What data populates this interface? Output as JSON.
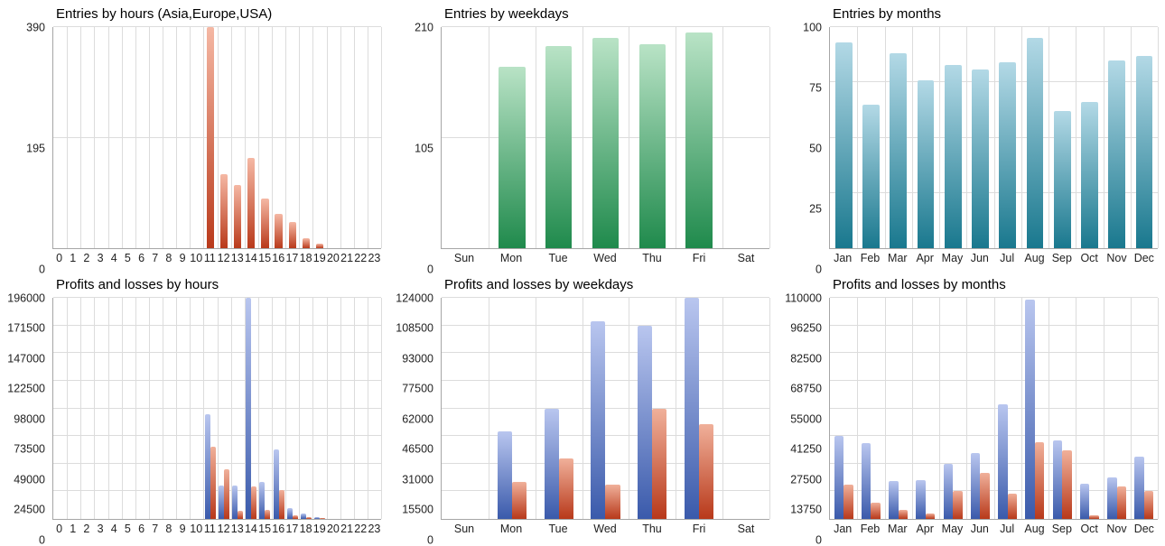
{
  "page": {
    "background": "#ffffff"
  },
  "chart_data": [
    {
      "type": "bar",
      "title": "Entries by hours (Asia,Europe,USA)",
      "categories": [
        "0",
        "1",
        "2",
        "3",
        "4",
        "5",
        "6",
        "7",
        "8",
        "9",
        "10",
        "11",
        "12",
        "13",
        "14",
        "15",
        "16",
        "17",
        "18",
        "19",
        "20",
        "21",
        "22",
        "23"
      ],
      "series": [
        {
          "name": "entries",
          "color_top": "#f5b8a4",
          "color_bottom": "#b93a1b",
          "values": [
            0,
            0,
            0,
            0,
            0,
            0,
            0,
            0,
            0,
            0,
            0,
            390,
            130,
            112,
            160,
            88,
            60,
            46,
            18,
            8,
            0,
            0,
            0,
            0
          ]
        }
      ],
      "ylim": [
        0,
        390
      ],
      "yticks": [
        0,
        195,
        390
      ],
      "grid": true,
      "legend": "none"
    },
    {
      "type": "bar",
      "title": "Entries by weekdays",
      "categories": [
        "Sun",
        "Mon",
        "Tue",
        "Wed",
        "Thu",
        "Fri",
        "Sat"
      ],
      "series": [
        {
          "name": "entries",
          "color_top": "#b9e3c6",
          "color_bottom": "#1f8a4c",
          "values": [
            0,
            172,
            192,
            200,
            194,
            205,
            0
          ]
        }
      ],
      "ylim": [
        0,
        210
      ],
      "yticks": [
        0,
        105,
        210
      ],
      "grid": true,
      "legend": "none"
    },
    {
      "type": "bar",
      "title": "Entries by months",
      "categories": [
        "Jan",
        "Feb",
        "Mar",
        "Apr",
        "May",
        "Jun",
        "Jul",
        "Aug",
        "Sep",
        "Oct",
        "Nov",
        "Dec"
      ],
      "series": [
        {
          "name": "entries",
          "color_top": "#b3d9e6",
          "color_bottom": "#19788e",
          "values": [
            93,
            65,
            88,
            76,
            83,
            81,
            84,
            95,
            62,
            66,
            85,
            87
          ]
        }
      ],
      "ylim": [
        0,
        100
      ],
      "yticks": [
        0,
        25,
        50,
        75,
        100
      ],
      "grid": true,
      "legend": "none"
    },
    {
      "type": "bar",
      "title": "Profits and losses by hours",
      "categories": [
        "0",
        "1",
        "2",
        "3",
        "4",
        "5",
        "6",
        "7",
        "8",
        "9",
        "10",
        "11",
        "12",
        "13",
        "14",
        "15",
        "16",
        "17",
        "18",
        "19",
        "20",
        "21",
        "22",
        "23"
      ],
      "series": [
        {
          "name": "profit",
          "color_top": "#b9c6ef",
          "color_bottom": "#3a5aab",
          "values": [
            0,
            0,
            0,
            0,
            0,
            0,
            0,
            0,
            0,
            0,
            0,
            93000,
            30000,
            30000,
            196000,
            33000,
            62000,
            10000,
            5000,
            2000,
            0,
            0,
            0,
            0
          ]
        },
        {
          "name": "loss",
          "color_top": "#f0b09a",
          "color_bottom": "#b8391a",
          "values": [
            0,
            0,
            0,
            0,
            0,
            0,
            0,
            0,
            0,
            0,
            0,
            64000,
            44000,
            7000,
            29000,
            8000,
            26000,
            3000,
            2000,
            500,
            0,
            0,
            0,
            0
          ]
        }
      ],
      "ylim": [
        0,
        196000
      ],
      "yticks": [
        0,
        24500,
        49000,
        73500,
        98000,
        122500,
        147000,
        171500,
        196000
      ],
      "grid": true,
      "legend": "none"
    },
    {
      "type": "bar",
      "title": "Profits and losses by weekdays",
      "categories": [
        "Sun",
        "Mon",
        "Tue",
        "Wed",
        "Thu",
        "Fri",
        "Sat"
      ],
      "series": [
        {
          "name": "profit",
          "color_top": "#b9c6ef",
          "color_bottom": "#3a5aab",
          "values": [
            0,
            49000,
            62000,
            111000,
            108500,
            124000,
            0
          ]
        },
        {
          "name": "loss",
          "color_top": "#f0b09a",
          "color_bottom": "#b8391a",
          "values": [
            0,
            21000,
            34000,
            19000,
            62000,
            53000,
            0
          ]
        }
      ],
      "ylim": [
        0,
        124000
      ],
      "yticks": [
        0,
        15500,
        31000,
        46500,
        62000,
        77500,
        93000,
        108500,
        124000
      ],
      "grid": true,
      "legend": "none"
    },
    {
      "type": "bar",
      "title": "Profits and losses by months",
      "categories": [
        "Jan",
        "Feb",
        "Mar",
        "Apr",
        "May",
        "Jun",
        "Jul",
        "Aug",
        "Sep",
        "Oct",
        "Nov",
        "Dec"
      ],
      "series": [
        {
          "name": "profit",
          "color_top": "#b9c6ef",
          "color_bottom": "#3a5aab",
          "values": [
            41250,
            37500,
            19000,
            19500,
            27500,
            33000,
            57000,
            109000,
            39000,
            17500,
            20500,
            31000
          ]
        },
        {
          "name": "loss",
          "color_top": "#f0b09a",
          "color_bottom": "#b8391a",
          "values": [
            17000,
            8000,
            4500,
            2500,
            14000,
            23000,
            12500,
            38000,
            34000,
            2000,
            16000,
            14000
          ]
        }
      ],
      "ylim": [
        0,
        110000
      ],
      "yticks": [
        0,
        13750,
        27500,
        41250,
        55000,
        68750,
        82500,
        96250,
        110000
      ],
      "grid": true,
      "legend": "none"
    }
  ]
}
